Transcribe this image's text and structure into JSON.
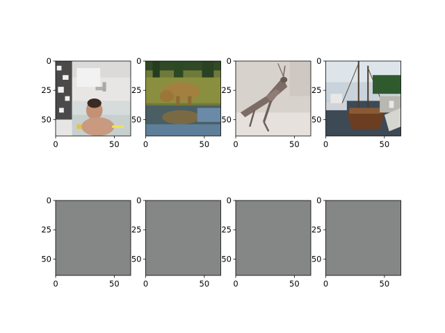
{
  "chart_data": [
    {
      "type": "image",
      "content": "photo: baby in bathtub",
      "xticks": [
        0,
        50
      ],
      "yticks": [
        0,
        25,
        50
      ],
      "xlim": [
        0,
        64
      ],
      "ylim": [
        64,
        0
      ]
    },
    {
      "type": "image",
      "content": "photo: animal drinking at pond",
      "xticks": [
        0,
        50
      ],
      "yticks": [
        0,
        25,
        50
      ],
      "xlim": [
        0,
        64
      ],
      "ylim": [
        64,
        0
      ]
    },
    {
      "type": "image",
      "content": "photo: praying mantis",
      "xticks": [
        0,
        50
      ],
      "yticks": [
        0,
        25,
        50
      ],
      "xlim": [
        0,
        64
      ],
      "ylim": [
        64,
        0
      ]
    },
    {
      "type": "image",
      "content": "photo: sailboat at harbor",
      "xticks": [
        0,
        50
      ],
      "yticks": [
        0,
        25,
        50
      ],
      "xlim": [
        0,
        64
      ],
      "ylim": [
        64,
        0
      ]
    },
    {
      "type": "image",
      "content": "uniform gray image",
      "fill": "#858786",
      "xticks": [
        0,
        50
      ],
      "yticks": [
        0,
        25,
        50
      ],
      "xlim": [
        0,
        64
      ],
      "ylim": [
        64,
        0
      ]
    },
    {
      "type": "image",
      "content": "uniform gray image",
      "fill": "#858786",
      "xticks": [
        0,
        50
      ],
      "yticks": [
        0,
        25,
        50
      ],
      "xlim": [
        0,
        64
      ],
      "ylim": [
        64,
        0
      ]
    },
    {
      "type": "image",
      "content": "uniform gray image",
      "fill": "#858786",
      "xticks": [
        0,
        50
      ],
      "yticks": [
        0,
        25,
        50
      ],
      "xlim": [
        0,
        64
      ],
      "ylim": [
        64,
        0
      ]
    },
    {
      "type": "image",
      "content": "uniform gray image",
      "fill": "#858786",
      "xticks": [
        0,
        50
      ],
      "yticks": [
        0,
        25,
        50
      ],
      "xlim": [
        0,
        64
      ],
      "ylim": [
        64,
        0
      ]
    }
  ]
}
